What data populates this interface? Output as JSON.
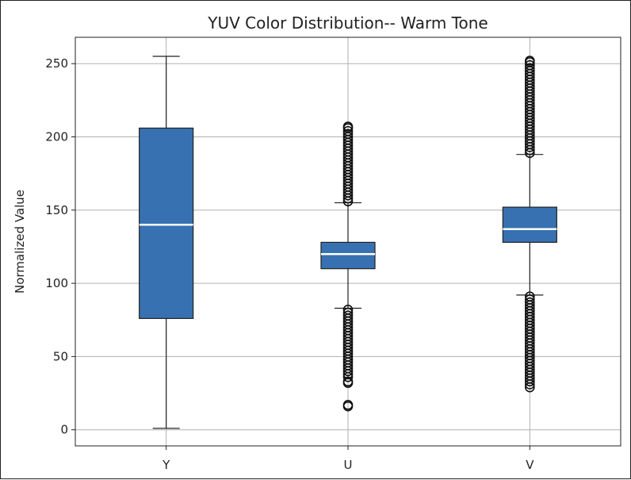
{
  "chart_data": {
    "type": "box",
    "title": "YUV Color Distribution-- Warm Tone",
    "xlabel": "",
    "ylabel": "Normalized Value",
    "categories": [
      "Y",
      "U",
      "V"
    ],
    "ylim": [
      -11,
      268
    ],
    "yticks": [
      0,
      50,
      100,
      150,
      200,
      250
    ],
    "grid": true,
    "box_color": "#3771b1",
    "median_color": "#ffffff",
    "boxes": [
      {
        "name": "Y",
        "whisker_low": 1,
        "q1": 76,
        "median": 140,
        "q3": 206,
        "whisker_high": 255,
        "outliers_low": [],
        "outliers_high": []
      },
      {
        "name": "U",
        "whisker_low": 83,
        "q1": 110,
        "median": 120,
        "q3": 128,
        "whisker_high": 155,
        "outliers_low": [
          16,
          17,
          32,
          33,
          36,
          38,
          40,
          42,
          44,
          46,
          48,
          50,
          52,
          54,
          56,
          58,
          60,
          62,
          64,
          66,
          68,
          70,
          72,
          74,
          76,
          78,
          80,
          82
        ],
        "outliers_high": [
          156,
          158,
          160,
          162,
          164,
          166,
          168,
          170,
          172,
          174,
          176,
          178,
          180,
          182,
          184,
          186,
          188,
          190,
          192,
          194,
          196,
          198,
          200,
          202,
          204,
          206,
          207
        ]
      },
      {
        "name": "V",
        "whisker_low": 92,
        "q1": 128,
        "median": 137,
        "q3": 152,
        "whisker_high": 188,
        "outliers_low": [
          29,
          31,
          33,
          35,
          37,
          39,
          41,
          43,
          45,
          47,
          49,
          51,
          53,
          55,
          57,
          59,
          61,
          63,
          65,
          67,
          69,
          71,
          73,
          75,
          77,
          79,
          81,
          83,
          85,
          87,
          89,
          91
        ],
        "outliers_high": [
          189,
          191,
          193,
          195,
          197,
          199,
          201,
          203,
          205,
          207,
          209,
          211,
          213,
          215,
          217,
          219,
          221,
          223,
          225,
          227,
          229,
          231,
          233,
          235,
          237,
          239,
          241,
          243,
          245,
          247,
          249,
          251,
          252
        ]
      }
    ]
  }
}
